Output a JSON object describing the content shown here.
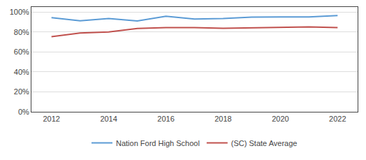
{
  "chart_data": {
    "type": "line",
    "x": [
      2012,
      2013,
      2014,
      2015,
      2016,
      2017,
      2018,
      2019,
      2020,
      2021,
      2022
    ],
    "series": [
      {
        "name": "Nation Ford High School",
        "color": "#5b9bd5",
        "values": [
          0.944,
          0.912,
          0.934,
          0.91,
          0.958,
          0.93,
          0.935,
          0.948,
          0.95,
          0.95,
          0.965
        ]
      },
      {
        "name": "(SC) State Average",
        "color": "#c0504d",
        "values": [
          0.752,
          0.79,
          0.8,
          0.835,
          0.843,
          0.843,
          0.836,
          0.84,
          0.848,
          0.85,
          0.843
        ]
      }
    ],
    "xlim": [
      2011.3,
      2022.7
    ],
    "xticks": [
      2012,
      2014,
      2016,
      2018,
      2020,
      2022
    ],
    "ylim": [
      0,
      1.05
    ],
    "yticks": [
      {
        "value": 0,
        "label": "0%"
      },
      {
        "value": 0.2,
        "label": "20%"
      },
      {
        "value": 0.4,
        "label": "40%"
      },
      {
        "value": 0.6,
        "label": "60%"
      },
      {
        "value": 0.8,
        "label": "80%"
      },
      {
        "value": 1.0,
        "label": "100%"
      }
    ],
    "grid": true,
    "legend": "bottom"
  }
}
